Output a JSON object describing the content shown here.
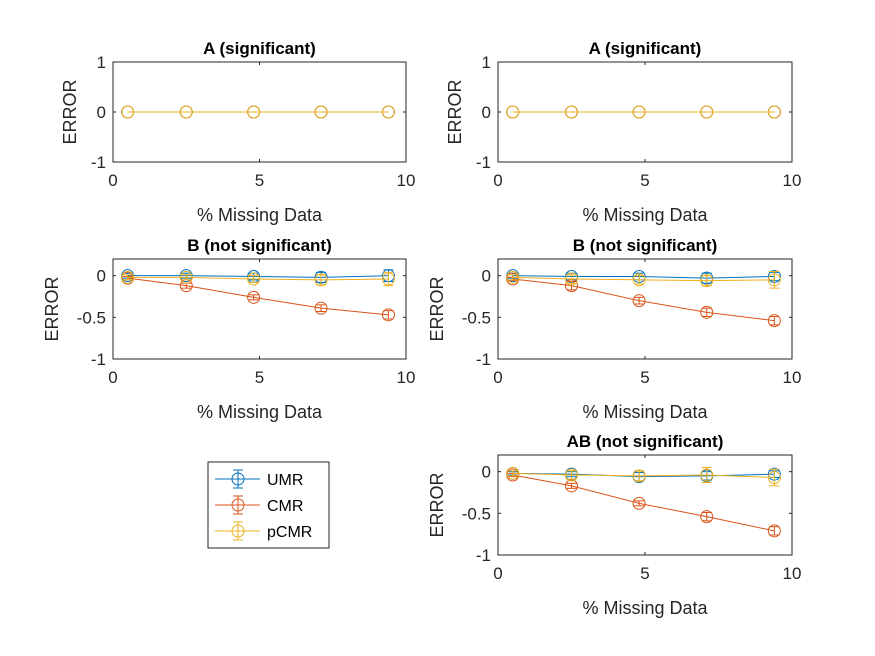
{
  "chart_data": [
    {
      "type": "line",
      "title": "A (significant)",
      "xlabel": "% Missing Data",
      "ylabel": "ERROR",
      "xlim": [
        0,
        10
      ],
      "ylim": [
        -1,
        1
      ],
      "xticks": [
        0,
        5,
        10
      ],
      "yticks": [
        -1,
        0,
        1
      ],
      "x": [
        0.5,
        2.5,
        4.8,
        7.1,
        9.4
      ],
      "series": [
        {
          "name": "UMR",
          "color": "#0072BD",
          "values": [
            0,
            0,
            0,
            0,
            0
          ],
          "errors": [
            0,
            0,
            0,
            0,
            0
          ]
        },
        {
          "name": "CMR",
          "color": "#D95319",
          "values": [
            0,
            0,
            0,
            0,
            0
          ],
          "errors": [
            0,
            0,
            0,
            0,
            0
          ]
        },
        {
          "name": "pCMR",
          "color": "#EDB120",
          "values": [
            0,
            0,
            0,
            0,
            0
          ],
          "errors": [
            0,
            0,
            0,
            0,
            0
          ]
        }
      ]
    },
    {
      "type": "line",
      "title": "A (significant)",
      "xlabel": "% Missing Data",
      "ylabel": "ERROR",
      "xlim": [
        0,
        10
      ],
      "ylim": [
        -1,
        1
      ],
      "xticks": [
        0,
        5,
        10
      ],
      "yticks": [
        -1,
        0,
        1
      ],
      "x": [
        0.5,
        2.5,
        4.8,
        7.1,
        9.4
      ],
      "series": [
        {
          "name": "UMR",
          "color": "#0072BD",
          "values": [
            0,
            0,
            0,
            0,
            0
          ],
          "errors": [
            0,
            0,
            0,
            0,
            0
          ]
        },
        {
          "name": "CMR",
          "color": "#D95319",
          "values": [
            0,
            0,
            0,
            0,
            0
          ],
          "errors": [
            0,
            0,
            0,
            0,
            0
          ]
        },
        {
          "name": "pCMR",
          "color": "#EDB120",
          "values": [
            0,
            0,
            0,
            0,
            0
          ],
          "errors": [
            0,
            0,
            0,
            0,
            0
          ]
        }
      ]
    },
    {
      "type": "line",
      "title": "B (not significant)",
      "xlabel": "% Missing Data",
      "ylabel": "ERROR",
      "xlim": [
        0,
        10
      ],
      "ylim": [
        -1,
        0.2
      ],
      "xticks": [
        0,
        5,
        10
      ],
      "yticks": [
        -1,
        -0.5,
        0
      ],
      "x": [
        0.5,
        2.5,
        4.8,
        7.1,
        9.4
      ],
      "series": [
        {
          "name": "UMR",
          "color": "#0072BD",
          "values": [
            0.0,
            0.0,
            -0.01,
            -0.02,
            0.0
          ],
          "errors": [
            0.03,
            0.03,
            0.04,
            0.06,
            0.07
          ]
        },
        {
          "name": "CMR",
          "color": "#D95319",
          "values": [
            -0.03,
            -0.12,
            -0.26,
            -0.39,
            -0.47
          ],
          "errors": [
            0.02,
            0.03,
            0.03,
            0.04,
            0.05
          ]
        },
        {
          "name": "pCMR",
          "color": "#EDB120",
          "values": [
            -0.02,
            -0.02,
            -0.04,
            -0.05,
            -0.04
          ],
          "errors": [
            0.03,
            0.03,
            0.04,
            0.06,
            0.08
          ]
        }
      ]
    },
    {
      "type": "line",
      "title": "B (not significant)",
      "xlabel": "% Missing Data",
      "ylabel": "ERROR",
      "xlim": [
        0,
        10
      ],
      "ylim": [
        -1,
        0.2
      ],
      "xticks": [
        0,
        5,
        10
      ],
      "yticks": [
        -1,
        -0.5,
        0
      ],
      "x": [
        0.5,
        2.5,
        4.8,
        7.1,
        9.4
      ],
      "series": [
        {
          "name": "UMR",
          "color": "#0072BD",
          "values": [
            0.0,
            -0.01,
            -0.01,
            -0.03,
            -0.01
          ],
          "errors": [
            0.03,
            0.04,
            0.04,
            0.06,
            0.05
          ]
        },
        {
          "name": "CMR",
          "color": "#D95319",
          "values": [
            -0.04,
            -0.12,
            -0.3,
            -0.44,
            -0.54
          ],
          "errors": [
            0.02,
            0.05,
            0.04,
            0.05,
            0.05
          ]
        },
        {
          "name": "pCMR",
          "color": "#EDB120",
          "values": [
            -0.02,
            -0.04,
            -0.05,
            -0.06,
            -0.05
          ],
          "errors": [
            0.03,
            0.05,
            0.05,
            0.06,
            0.1
          ]
        }
      ]
    },
    {
      "type": "line",
      "title": "AB (not significant)",
      "xlabel": "% Missing Data",
      "ylabel": "ERROR",
      "xlim": [
        0,
        10
      ],
      "ylim": [
        -1,
        0.2
      ],
      "xticks": [
        0,
        5,
        10
      ],
      "yticks": [
        -1,
        -0.5,
        0
      ],
      "x": [
        0.5,
        2.5,
        4.8,
        7.1,
        9.4
      ],
      "series": [
        {
          "name": "UMR",
          "color": "#0072BD",
          "values": [
            -0.02,
            -0.03,
            -0.06,
            -0.05,
            -0.03
          ],
          "errors": [
            0.02,
            0.03,
            0.05,
            0.05,
            0.04
          ]
        },
        {
          "name": "CMR",
          "color": "#D95319",
          "values": [
            -0.04,
            -0.17,
            -0.38,
            -0.54,
            -0.71
          ],
          "errors": [
            0.02,
            0.03,
            0.03,
            0.05,
            0.05
          ]
        },
        {
          "name": "pCMR",
          "color": "#EDB120",
          "values": [
            -0.02,
            -0.04,
            -0.05,
            -0.04,
            -0.07
          ],
          "errors": [
            0.03,
            0.05,
            0.06,
            0.09,
            0.1
          ]
        }
      ]
    }
  ],
  "legend": {
    "entries": [
      {
        "label": "UMR",
        "color": "#0072BD"
      },
      {
        "label": "CMR",
        "color": "#D95319"
      },
      {
        "label": "pCMR",
        "color": "#EDB120"
      }
    ]
  }
}
